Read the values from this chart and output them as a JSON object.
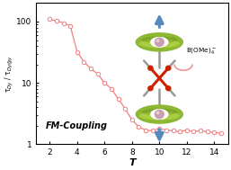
{
  "T_values": [
    2.0,
    2.5,
    3.0,
    3.5,
    4.0,
    4.5,
    5.0,
    5.5,
    6.0,
    6.5,
    7.0,
    7.5,
    8.0,
    8.5,
    9.0,
    9.5,
    10.0,
    10.5,
    11.0,
    11.5,
    12.0,
    12.5,
    13.0,
    13.5,
    14.0,
    14.5
  ],
  "tau_ratio": [
    110,
    102,
    95,
    85,
    32,
    22,
    17,
    14,
    10,
    8,
    5.5,
    3.8,
    2.5,
    1.9,
    1.7,
    1.65,
    1.8,
    1.7,
    1.65,
    1.6,
    1.7,
    1.6,
    1.65,
    1.6,
    1.55,
    1.5
  ],
  "line_color": "#f08080",
  "marker_face": "white",
  "xlabel": "T",
  "ylabel": "τ$_{Dy}$ / τ$_{Dy@y}$",
  "xlim": [
    1,
    15
  ],
  "ylim_log": [
    1,
    200
  ],
  "yticks": [
    1,
    10,
    100
  ],
  "xticks": [
    2,
    4,
    6,
    8,
    10,
    12,
    14
  ],
  "annotation_text": "FM-Coupling",
  "bome_text": "B(OMe)$_4^-$",
  "background_color": "#ffffff",
  "torus_color": "#8db833",
  "torus_highlight": "#c5e050",
  "sphere_color": "#c8a0b0",
  "red_color": "#cc2200",
  "gray_color": "#999999",
  "arrow_blue": "#5588bb",
  "pink_arc": "#f08080",
  "fig_width": 2.57,
  "fig_height": 1.89,
  "dpi": 100
}
